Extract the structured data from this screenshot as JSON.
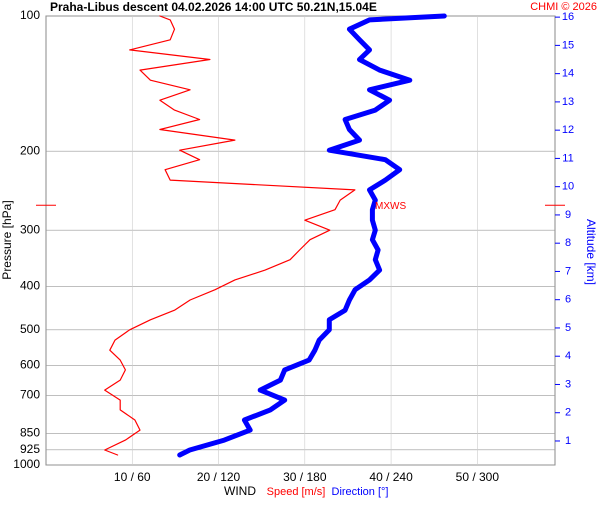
{
  "chart_data": {
    "type": "sounding",
    "title": "Praha-Libus   descent   04.02.2026 14:00 UTC  50.21N,15.04E",
    "credit": "CHMI © 2026",
    "ylabel": "Pressure [hPa]",
    "y2label": "Altitude [km]",
    "xlabel": "WIND",
    "ylim": [
      1000,
      100
    ],
    "log_y": true,
    "yticks": [
      100,
      200,
      300,
      400,
      500,
      600,
      700,
      850,
      925,
      1000
    ],
    "y2lim": [
      0.15,
      16.04
    ],
    "y2ticks": [
      1,
      2,
      3,
      4,
      5,
      6,
      7,
      8,
      9,
      10,
      11,
      12,
      13,
      14,
      15,
      16
    ],
    "y2color": "#0000ff",
    "xlim": [
      0,
      59
    ],
    "x2lim": [
      0,
      354
    ],
    "xticks": [
      {
        "value": 10,
        "label": "10 / 60"
      },
      {
        "value": 20,
        "label": "20 / 120"
      },
      {
        "value": 30,
        "label": "30 / 180"
      },
      {
        "value": 40,
        "label": "40 / 240"
      },
      {
        "value": 50,
        "label": "50 / 300"
      }
    ],
    "grid": true,
    "mxws": {
      "label": "MXWS",
      "pressure": 264,
      "color": "#ff0000"
    },
    "pressure": [
      950,
      926,
      880,
      836,
      794,
      754,
      717,
      681,
      647,
      614,
      584,
      555,
      527,
      500,
      475,
      452,
      429,
      407,
      387,
      368,
      349,
      332,
      315,
      300,
      285,
      270,
      257,
      244,
      232,
      220,
      209,
      199,
      189,
      179,
      170,
      162,
      154,
      146,
      139,
      132,
      125,
      119,
      113,
      107,
      102,
      100
    ],
    "series": [
      {
        "name": "Speed [m/s]",
        "color": "#ff0000",
        "width": 1.2,
        "axis": "x",
        "values": [
          8.3,
          6.8,
          9.2,
          10.9,
          10.3,
          8.6,
          8.6,
          6.8,
          8.6,
          9.2,
          8.6,
          7.4,
          8.0,
          9.7,
          12.1,
          14.9,
          16.7,
          19.6,
          21.9,
          25.4,
          28.3,
          29.4,
          30.6,
          32.9,
          30.0,
          33.5,
          34.1,
          35.8,
          14.4,
          13.8,
          17.8,
          15.5,
          21.9,
          13.2,
          17.8,
          14.9,
          13.2,
          16.7,
          12.1,
          10.9,
          19.0,
          9.7,
          14.4,
          14.9,
          14.4,
          13.2
        ]
      },
      {
        "name": "Direction [°]",
        "color": "#0000ff",
        "width": 5,
        "axis": "x2",
        "values": [
          93,
          100,
          124,
          142,
          138,
          156,
          166,
          149,
          163,
          166,
          183,
          187,
          190,
          197,
          197,
          208,
          211,
          215,
          225,
          232,
          229,
          231,
          227,
          229,
          227,
          227,
          229,
          225,
          236,
          246,
          236,
          197,
          218,
          211,
          208,
          229,
          239,
          225,
          253,
          232,
          218,
          225,
          218,
          211,
          225,
          277
        ]
      }
    ]
  }
}
